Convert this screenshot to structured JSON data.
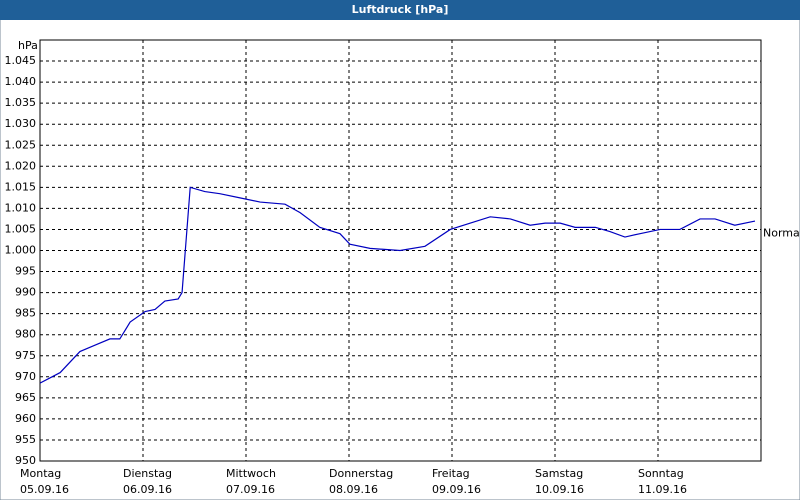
{
  "chart_data": {
    "type": "line",
    "title": "Luftdruck [hPa]",
    "y_label": "hPa",
    "x": [
      0,
      4.7,
      9.3,
      12.8,
      16.3,
      18.6,
      21,
      24.5,
      26.8,
      29.1,
      32.2,
      33.1,
      35,
      38.4,
      41.9,
      46.6,
      51.3,
      57.1,
      60.6,
      65.2,
      69.9,
      72.2,
      76.9,
      83.9,
      89.7,
      95.6,
      100.2,
      104.9,
      109.6,
      114.2,
      117.7,
      121.2,
      124.7,
      129.4,
      132.8,
      136.3,
      139.8,
      144.5,
      149.1,
      153.8,
      157.3,
      161.9,
      166.6
    ],
    "series": [
      {
        "color": "#0000c0",
        "values": [
          968.5,
          971,
          976,
          977.5,
          979,
          979,
          983,
          985.5,
          986,
          988,
          988.5,
          990,
          1015,
          1014,
          1013.5,
          1012.5,
          1011.5,
          1011,
          1009,
          1005.5,
          1004,
          1001.5,
          1000.5,
          1000,
          1001,
          1005,
          1006.5,
          1008,
          1007.5,
          1006,
          1006.5,
          1006.5,
          1005.5,
          1005.5,
          1004.5,
          1003.2,
          1004,
          1005,
          1005,
          1007.5,
          1007.5,
          1006,
          1007
        ]
      }
    ],
    "xlim": [
      0,
      168
    ],
    "xticks": [
      {
        "value": 0,
        "label": [
          "Montag",
          "05.09.16"
        ]
      },
      {
        "value": 24,
        "label": [
          "Dienstag",
          "06.09.16"
        ]
      },
      {
        "value": 48,
        "label": [
          "Mittwoch",
          "07.09.16"
        ]
      },
      {
        "value": 72,
        "label": [
          "Donnerstag",
          "08.09.16"
        ]
      },
      {
        "value": 96,
        "label": [
          "Freitag",
          "09.09.16"
        ]
      },
      {
        "value": 120,
        "label": [
          "Samstag",
          "10.09.16"
        ]
      },
      {
        "value": 144,
        "label": [
          "Sonntag",
          "11.09.16"
        ]
      }
    ],
    "ylim": [
      950,
      1050
    ],
    "yticks": [
      950,
      955,
      960,
      965,
      970,
      975,
      980,
      985,
      990,
      995,
      {
        "value": 1000,
        "label": "1.000"
      },
      {
        "value": 1005,
        "label": "1.005"
      },
      {
        "value": 1010,
        "label": "1.010"
      },
      {
        "value": 1015,
        "label": "1.015"
      },
      {
        "value": 1020,
        "label": "1.020"
      },
      {
        "value": 1025,
        "label": "1.025"
      },
      {
        "value": 1030,
        "label": "1.030"
      },
      {
        "value": 1035,
        "label": "1.035"
      },
      {
        "value": 1040,
        "label": "1.040"
      },
      {
        "value": 1045,
        "label": "1.045"
      }
    ],
    "grid": true,
    "normal": {
      "label": "Normal",
      "value": 1004
    }
  }
}
